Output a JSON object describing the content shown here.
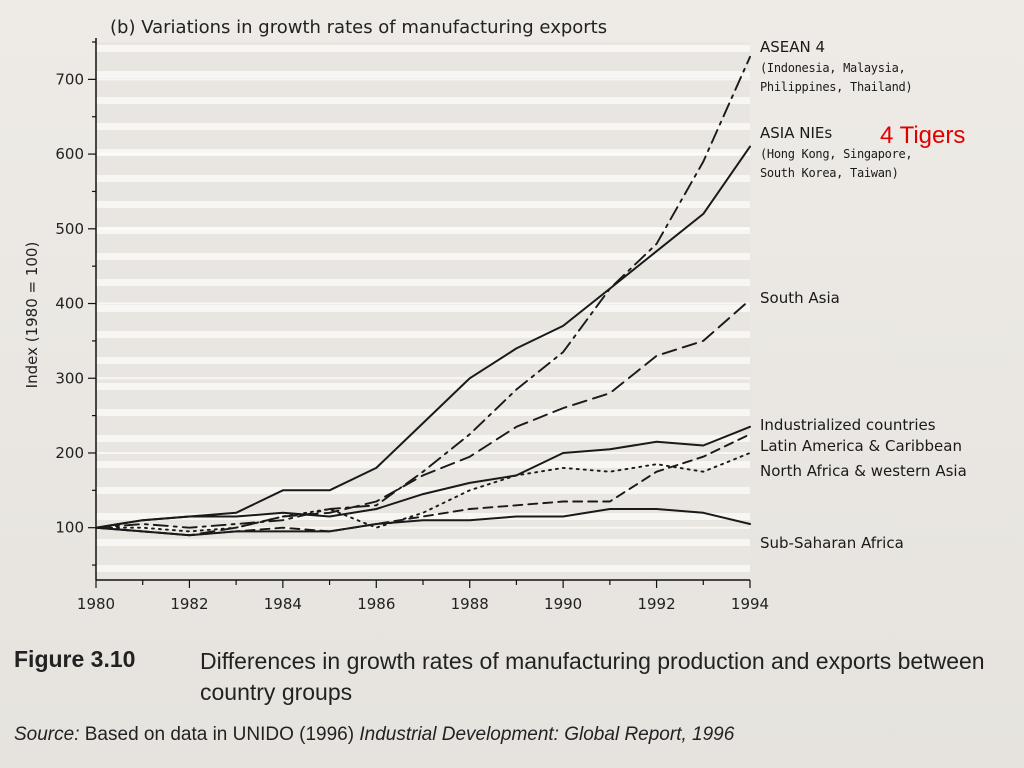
{
  "chart_data": {
    "type": "line",
    "title": "(b) Variations in growth rates of manufacturing exports",
    "ylabel": "Index (1980 = 100)",
    "xlabel": "",
    "x": [
      1980,
      1981,
      1982,
      1983,
      1984,
      1985,
      1986,
      1987,
      1988,
      1989,
      1990,
      1991,
      1992,
      1993,
      1994
    ],
    "xlim": [
      1980,
      1994
    ],
    "ylim": [
      30,
      750
    ],
    "xticks": [
      1980,
      1982,
      1984,
      1986,
      1988,
      1990,
      1992,
      1994
    ],
    "yticks": [
      100,
      200,
      300,
      400,
      500,
      600,
      700
    ],
    "grid": "horizontal",
    "series": [
      {
        "key": "asean4",
        "name": "ASEAN 4",
        "note": "(Indonesia, Malaysia, Philippines, Thailand)",
        "dash": "dashdot",
        "values": [
          100,
          105,
          100,
          105,
          110,
          125,
          130,
          175,
          225,
          285,
          335,
          420,
          480,
          590,
          730
        ]
      },
      {
        "key": "nies",
        "name": "ASIA NIEs",
        "note": "(Hong Kong, Singapore, South Korea, Taiwan)",
        "dash": "solid",
        "values": [
          100,
          110,
          115,
          120,
          150,
          150,
          180,
          240,
          300,
          340,
          370,
          420,
          470,
          520,
          610
        ]
      },
      {
        "key": "southasia",
        "name": "South Asia",
        "note": "",
        "dash": "longdash",
        "values": [
          100,
          95,
          90,
          100,
          115,
          120,
          135,
          170,
          195,
          235,
          260,
          280,
          330,
          350,
          405
        ]
      },
      {
        "key": "industrialized",
        "name": "Industrialized countries",
        "note": "",
        "dash": "solid",
        "values": [
          100,
          110,
          115,
          115,
          120,
          115,
          125,
          145,
          160,
          170,
          200,
          205,
          215,
          210,
          235
        ]
      },
      {
        "key": "latam",
        "name": "Latin America & Caribbean",
        "note": "",
        "dash": "shortdash",
        "values": [
          100,
          95,
          90,
          95,
          100,
          95,
          105,
          115,
          125,
          130,
          135,
          135,
          175,
          195,
          225
        ]
      },
      {
        "key": "nafrica",
        "name": "North Africa & western Asia",
        "note": "",
        "dash": "dotted",
        "values": [
          100,
          100,
          95,
          100,
          115,
          125,
          100,
          120,
          150,
          170,
          180,
          175,
          185,
          175,
          200
        ]
      },
      {
        "key": "ssa",
        "name": "Sub-Saharan Africa",
        "note": "",
        "dash": "solid",
        "values": [
          100,
          95,
          90,
          95,
          95,
          95,
          105,
          110,
          110,
          115,
          115,
          125,
          125,
          120,
          105
        ]
      }
    ]
  },
  "annotation": {
    "text": "4 Tigers",
    "color": "#e10000"
  },
  "caption": {
    "figure_number": "Figure 3.10",
    "description": "Differences in growth rates of manufacturing production and exports between country groups",
    "source_prefix": "Source:",
    "source_text": " Based on data in UNIDO (1996) ",
    "source_title": "Industrial Development: Global Report, 1996"
  }
}
